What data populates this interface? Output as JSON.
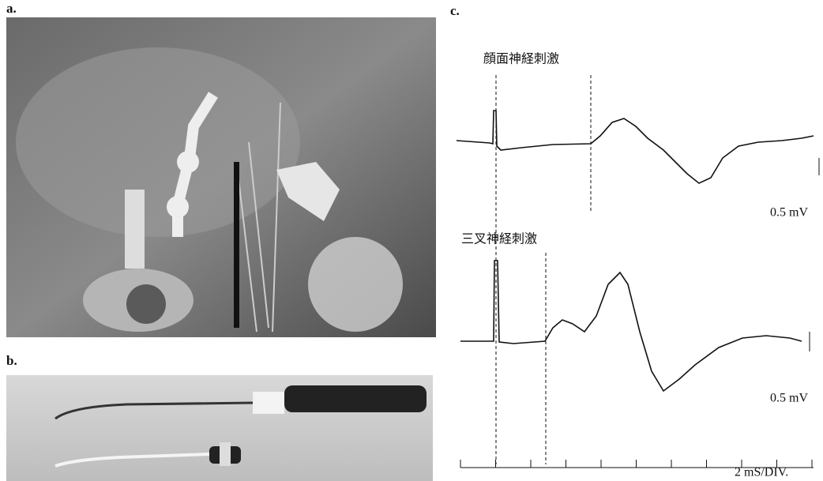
{
  "panels": {
    "a": {
      "label": "a."
    },
    "b": {
      "label": "b."
    },
    "c": {
      "label": "c.",
      "traces": [
        {
          "title": "顔面神経刺激",
          "scale": "0.5 mV"
        },
        {
          "title": "三叉神経刺激",
          "scale": "0.5 mV"
        }
      ],
      "time_axis": "2 mS/DIV."
    }
  }
}
